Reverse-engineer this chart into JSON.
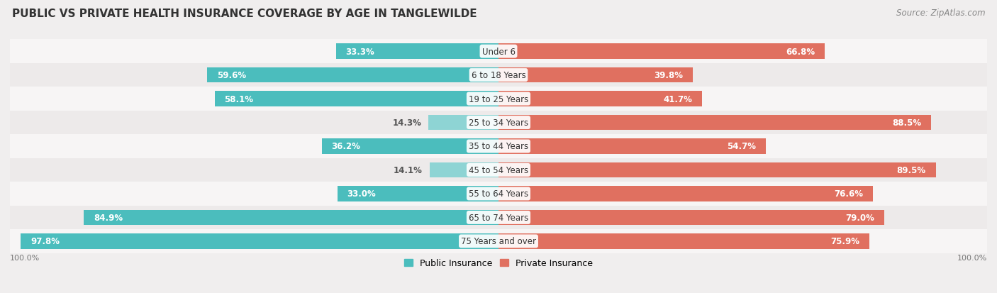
{
  "title": "PUBLIC VS PRIVATE HEALTH INSURANCE COVERAGE BY AGE IN TANGLEWILDE",
  "source": "Source: ZipAtlas.com",
  "categories": [
    "Under 6",
    "6 to 18 Years",
    "19 to 25 Years",
    "25 to 34 Years",
    "35 to 44 Years",
    "45 to 54 Years",
    "55 to 64 Years",
    "65 to 74 Years",
    "75 Years and over"
  ],
  "public_values": [
    33.3,
    59.6,
    58.1,
    14.3,
    36.2,
    14.1,
    33.0,
    84.9,
    97.8
  ],
  "private_values": [
    66.8,
    39.8,
    41.7,
    88.5,
    54.7,
    89.5,
    76.6,
    79.0,
    75.9
  ],
  "public_color_dark": "#4bbdbd",
  "public_color_light": "#8ed4d4",
  "private_color_dark": "#e07060",
  "private_color_light": "#eea898",
  "bg_color": "#f0eeee",
  "row_bg_colors": [
    "#f7f5f5",
    "#edeaea"
  ],
  "title_fontsize": 11,
  "bar_fontsize": 8.5,
  "legend_fontsize": 9,
  "source_fontsize": 8.5,
  "axis_label_fontsize": 8
}
